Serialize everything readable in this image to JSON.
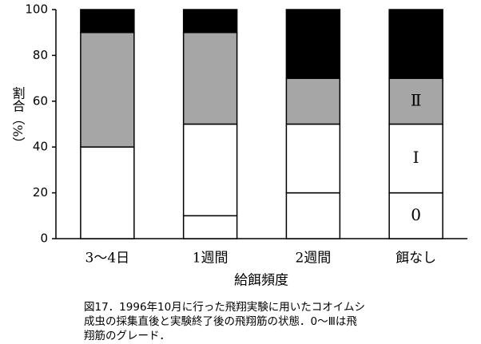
{
  "chart_data": {
    "type": "stacked_bar",
    "categories": [
      "3～4日",
      "1週間",
      "2週間",
      "餌なし"
    ],
    "series": [
      {
        "name": "0",
        "color": "#ffffff",
        "values": [
          0,
          10,
          20,
          20
        ]
      },
      {
        "name": "Ⅰ",
        "color": "#ffffff",
        "values": [
          40,
          40,
          30,
          30
        ]
      },
      {
        "name": "Ⅱ",
        "color": "#a6a6a6",
        "values": [
          50,
          40,
          20,
          20
        ]
      },
      {
        "color": "#000000",
        "values": [
          10,
          10,
          30,
          30
        ]
      }
    ],
    "ylabel": "割合（%）",
    "xlabel": "給餌頻度",
    "ylim": [
      0,
      100
    ],
    "yticks": [
      0,
      20,
      40,
      60,
      80,
      100
    ]
  },
  "caption": [
    "図17．1996年10月に行った飛翔実験に用いたコオイムシ",
    "成虫の採集直後と実験終了後の飛翔筋の状態．0～Ⅲは飛",
    "翔筋のグレード．"
  ]
}
